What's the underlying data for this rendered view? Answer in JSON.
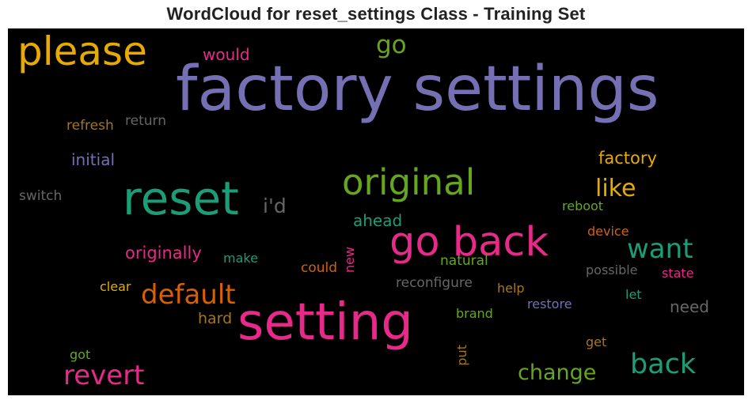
{
  "chart_data": {
    "type": "wordcloud",
    "title": "WordCloud for reset_settings Class - Training Set",
    "background": "#000000",
    "colormap": "Dark2",
    "words": [
      {
        "text": "factory settings",
        "weight": 1.0,
        "color": "#7570b3"
      },
      {
        "text": "setting",
        "weight": 0.82,
        "color": "#e7298a"
      },
      {
        "text": "reset",
        "weight": 0.74,
        "color": "#1b9e77"
      },
      {
        "text": "go back",
        "weight": 0.66,
        "color": "#e7298a"
      },
      {
        "text": "please",
        "weight": 0.64,
        "color": "#e6ab02"
      },
      {
        "text": "original",
        "weight": 0.58,
        "color": "#66a61e"
      },
      {
        "text": "back",
        "weight": 0.45,
        "color": "#1b9e77"
      },
      {
        "text": "want",
        "weight": 0.44,
        "color": "#1b9e77"
      },
      {
        "text": "default",
        "weight": 0.44,
        "color": "#d95f02"
      },
      {
        "text": "revert",
        "weight": 0.44,
        "color": "#e7298a"
      },
      {
        "text": "go",
        "weight": 0.4,
        "color": "#66a61e"
      },
      {
        "text": "like",
        "weight": 0.38,
        "color": "#e6ab02"
      },
      {
        "text": "change",
        "weight": 0.34,
        "color": "#66a61e"
      },
      {
        "text": "i'd",
        "weight": 0.32,
        "color": "#666666"
      },
      {
        "text": "originally",
        "weight": 0.27,
        "color": "#e7298a"
      },
      {
        "text": "factory",
        "weight": 0.27,
        "color": "#e6ab02"
      },
      {
        "text": "ahead",
        "weight": 0.26,
        "color": "#1b9e77"
      },
      {
        "text": "initial",
        "weight": 0.26,
        "color": "#7570b3"
      },
      {
        "text": "would",
        "weight": 0.26,
        "color": "#e7298a"
      },
      {
        "text": "need",
        "weight": 0.26,
        "color": "#666666"
      },
      {
        "text": "hard",
        "weight": 0.24,
        "color": "#a6761d"
      },
      {
        "text": "refresh",
        "weight": 0.22,
        "color": "#a6761d"
      },
      {
        "text": "return",
        "weight": 0.22,
        "color": "#666666"
      },
      {
        "text": "switch",
        "weight": 0.22,
        "color": "#666666"
      },
      {
        "text": "reconfigure",
        "weight": 0.22,
        "color": "#666666"
      },
      {
        "text": "could",
        "weight": 0.22,
        "color": "#d95f02"
      },
      {
        "text": "natural",
        "weight": 0.22,
        "color": "#66a61e"
      },
      {
        "text": "reboot",
        "weight": 0.21,
        "color": "#66a61e"
      },
      {
        "text": "device",
        "weight": 0.21,
        "color": "#d95f02"
      },
      {
        "text": "possible",
        "weight": 0.21,
        "color": "#666666"
      },
      {
        "text": "state",
        "weight": 0.21,
        "color": "#e7298a"
      },
      {
        "text": "restore",
        "weight": 0.21,
        "color": "#7570b3"
      },
      {
        "text": "brand",
        "weight": 0.21,
        "color": "#66a61e"
      },
      {
        "text": "help",
        "weight": 0.21,
        "color": "#a6761d"
      },
      {
        "text": "clear",
        "weight": 0.21,
        "color": "#e6ab02"
      },
      {
        "text": "make",
        "weight": 0.2,
        "color": "#1b9e77"
      },
      {
        "text": "new",
        "weight": 0.2,
        "color": "#e7298a",
        "vertical": true
      },
      {
        "text": "let",
        "weight": 0.2,
        "color": "#1b9e77"
      },
      {
        "text": "get",
        "weight": 0.2,
        "color": "#a6761d"
      },
      {
        "text": "got",
        "weight": 0.2,
        "color": "#66a61e"
      },
      {
        "text": "put",
        "weight": 0.2,
        "color": "#a6761d",
        "vertical": true
      }
    ]
  }
}
